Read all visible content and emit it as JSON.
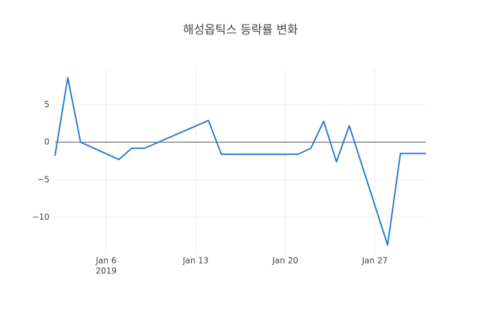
{
  "chart_data": {
    "type": "line",
    "title": "해성옵틱스 등락률 변화",
    "x": [
      "2019-01-02",
      "2019-01-03",
      "2019-01-04",
      "2019-01-07",
      "2019-01-08",
      "2019-01-09",
      "2019-01-14",
      "2019-01-15",
      "2019-01-21",
      "2019-01-22",
      "2019-01-23",
      "2019-01-24",
      "2019-01-25",
      "2019-01-28",
      "2019-01-29",
      "2019-01-30",
      "2019-01-31"
    ],
    "series": [
      {
        "name": "등락률",
        "color": "#1f77d4",
        "values": [
          -1.8,
          8.6,
          0,
          -2.3,
          -0.8,
          -0.8,
          2.9,
          -1.6,
          -1.6,
          -0.8,
          2.8,
          -2.6,
          2.2,
          -13.7,
          -1.5,
          -1.5,
          -1.5
        ]
      }
    ],
    "xlim": [
      "2019-01-02",
      "2019-01-31"
    ],
    "xticks": [
      {
        "value": "2019-01-06",
        "label": "Jan 6"
      },
      {
        "value": "2019-01-13",
        "label": "Jan 13"
      },
      {
        "value": "2019-01-20",
        "label": "Jan 20"
      },
      {
        "value": "2019-01-27",
        "label": "Jan 27"
      }
    ],
    "xtick_sublabel": "2019",
    "ylim": [
      -14.9,
      9.8
    ],
    "yticks": [
      {
        "value": -10,
        "label": "−10"
      },
      {
        "value": -5,
        "label": "−5"
      },
      0,
      5
    ],
    "grid": true,
    "zeroline": true
  }
}
